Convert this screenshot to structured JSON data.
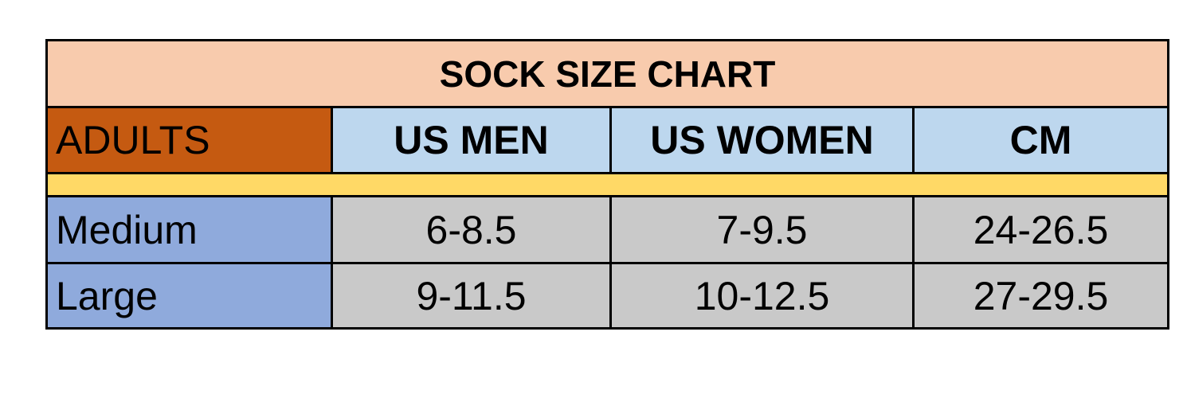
{
  "table": {
    "title": "SOCK SIZE CHART",
    "header": [
      "ADULTS",
      "US MEN",
      "US WOMEN",
      "CM"
    ],
    "rows": [
      [
        "Medium",
        "6-8.5",
        "7-9.5",
        "24-26.5"
      ],
      [
        "Large",
        "9-11.5",
        "10-12.5",
        "27-29.5"
      ]
    ]
  }
}
